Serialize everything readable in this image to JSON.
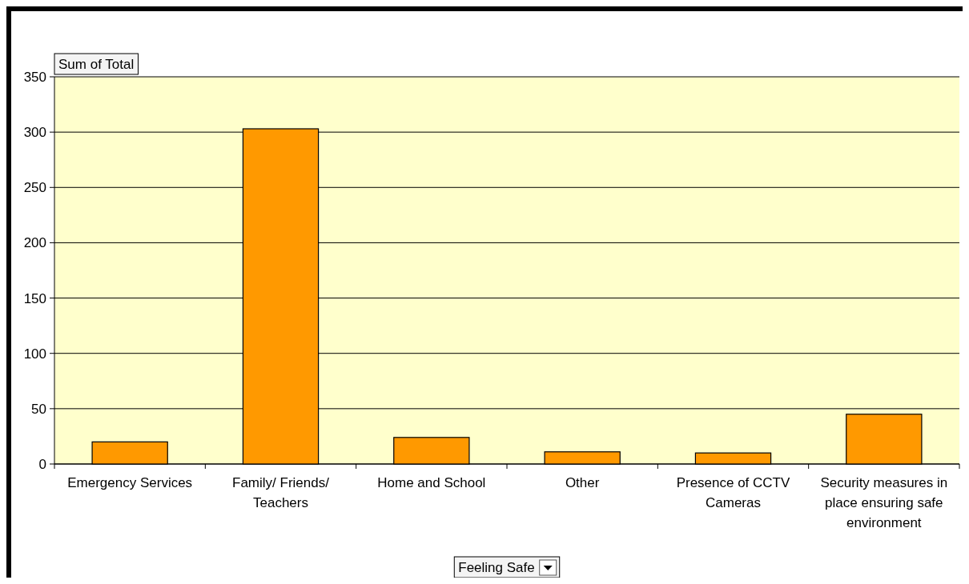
{
  "chart_data": {
    "type": "bar",
    "xlabel": "Feeling Safe",
    "ylabel": "Sum of Total",
    "categories": [
      "Emergency Services",
      "Family/ Friends/ Teachers",
      "Home and School",
      "Other",
      "Presence of CCTV Cameras",
      "Security measures in place ensuring safe environment"
    ],
    "values": [
      20,
      303,
      24,
      11,
      10,
      45
    ],
    "color": "#ff9900",
    "ylim": [
      0,
      350
    ],
    "yticks": [
      0,
      50,
      100,
      150,
      200,
      250,
      300,
      350
    ],
    "grid": "y"
  }
}
